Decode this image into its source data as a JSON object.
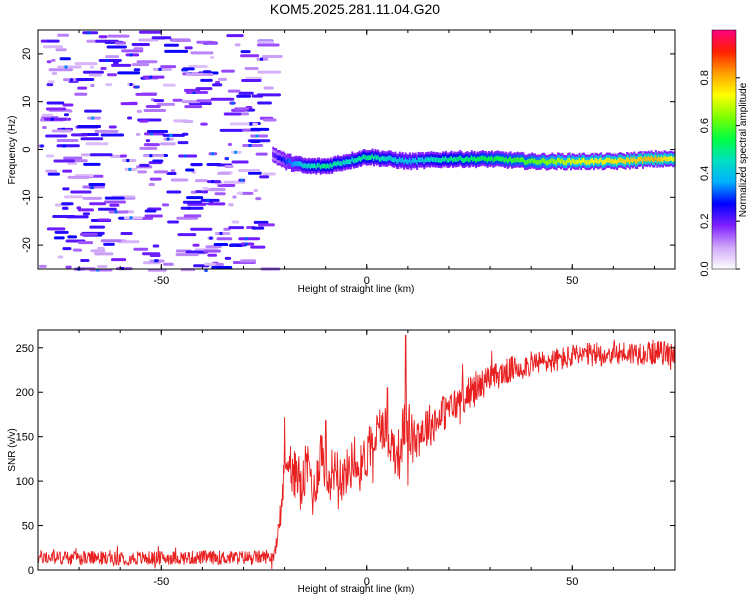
{
  "page_title": "KOM5.2025.281.11.04.G20",
  "chart_data": [
    {
      "type": "heatmap",
      "title": "KOM5.2025.281.11.04.G20",
      "xlabel": "Height of straight line (km)",
      "ylabel": "Frequency (Hz)",
      "xlim": [
        -80,
        75
      ],
      "ylim": [
        -25,
        25
      ],
      "xticks": [
        -50,
        0,
        50
      ],
      "yticks": [
        -20,
        -10,
        0,
        10,
        20
      ],
      "colorbar": {
        "label": "Normalized spectral amplitude",
        "range": [
          0,
          1
        ],
        "ticks": [
          "0.0",
          "0.2",
          "0.4",
          "0.6",
          "0.8"
        ],
        "colors": [
          "#ffffff",
          "#d0a8f8",
          "#8020ff",
          "#0000ff",
          "#00b0ff",
          "#00e0c0",
          "#00ff40",
          "#80ff00",
          "#ffff00",
          "#ffa000",
          "#ff2000",
          "#ff0080"
        ]
      },
      "noise_region": {
        "x_range": [
          -80,
          -25
        ],
        "y_range": [
          -25,
          25
        ],
        "amplitude": 0.15
      },
      "signal_ridge": {
        "x": [
          -23,
          -20,
          -15,
          -10,
          -5,
          0,
          5,
          10,
          20,
          30,
          40,
          50,
          60,
          70,
          75
        ],
        "frequency": [
          -1,
          -2.5,
          -3.5,
          -3.5,
          -2.5,
          -1.5,
          -2,
          -2.5,
          -2,
          -2,
          -2.5,
          -2.5,
          -2.5,
          -2,
          -2
        ],
        "amplitude": [
          0.2,
          0.3,
          0.45,
          0.5,
          0.45,
          0.5,
          0.45,
          0.4,
          0.5,
          0.55,
          0.6,
          0.7,
          0.75,
          0.8,
          0.7
        ]
      }
    },
    {
      "type": "line",
      "title": "",
      "xlabel": "Height of straight line (km)",
      "ylabel": "SNR (v/v)",
      "xlim": [
        -80,
        75
      ],
      "ylim": [
        0,
        270
      ],
      "xticks": [
        -50,
        0,
        50
      ],
      "yticks": [
        0,
        50,
        100,
        150,
        200,
        250
      ],
      "color": "#e82020",
      "series": [
        {
          "name": "SNR",
          "x": [
            -80,
            -60,
            -40,
            -30,
            -23,
            -22,
            -21,
            -20,
            -19,
            -18,
            -17,
            -16,
            -15,
            -14,
            -13,
            -12,
            -11,
            -10,
            -9,
            -8,
            -7,
            -6,
            -5,
            -4,
            -3,
            -2,
            -1,
            0,
            2,
            4,
            6,
            8,
            9,
            10,
            11,
            12,
            14,
            16,
            18,
            20,
            25,
            30,
            35,
            40,
            45,
            50,
            55,
            60,
            65,
            70,
            75
          ],
          "y": [
            14,
            13,
            14,
            14,
            15,
            25,
            60,
            110,
            140,
            95,
            120,
            85,
            110,
            120,
            80,
            110,
            140,
            100,
            105,
            115,
            120,
            100,
            110,
            115,
            130,
            110,
            120,
            130,
            150,
            165,
            140,
            130,
            160,
            170,
            145,
            150,
            160,
            165,
            175,
            180,
            200,
            215,
            225,
            232,
            235,
            240,
            242,
            244,
            244,
            245,
            243
          ],
          "noise": [
            8,
            8,
            8,
            8,
            8,
            10,
            15,
            25,
            30,
            30,
            30,
            30,
            30,
            28,
            28,
            28,
            30,
            30,
            28,
            28,
            28,
            26,
            26,
            26,
            26,
            26,
            26,
            28,
            28,
            28,
            28,
            30,
            30,
            30,
            30,
            28,
            26,
            24,
            22,
            20,
            18,
            16,
            15,
            14,
            14,
            14,
            14,
            14,
            14,
            14,
            14
          ],
          "spikes": [
            {
              "x": -20,
              "y": 172
            },
            {
              "x": -10,
              "y": 168
            },
            {
              "x": 5,
              "y": 205
            },
            {
              "x": 9.5,
              "y": 264
            },
            {
              "x": 10,
              "y": 95
            },
            {
              "x": 3,
              "y": 160
            }
          ]
        }
      ]
    }
  ]
}
